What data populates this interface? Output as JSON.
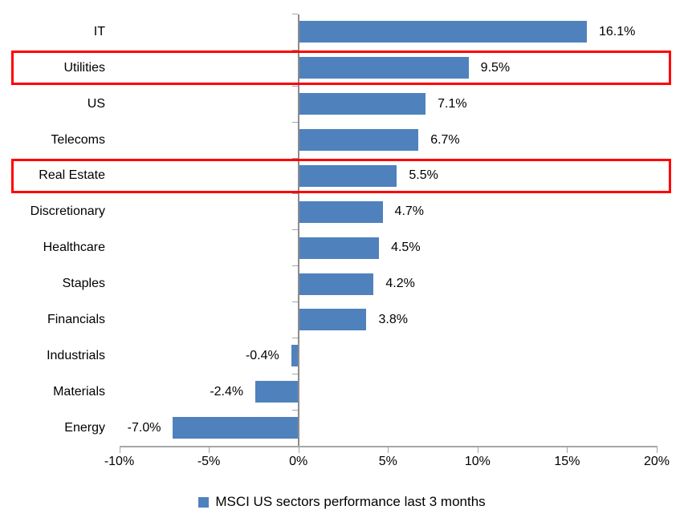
{
  "chart_data": {
    "type": "bar",
    "orientation": "horizontal",
    "categories": [
      "IT",
      "Utilities",
      "US",
      "Telecoms",
      "Real Estate",
      "Discretionary",
      "Healthcare",
      "Staples",
      "Financials",
      "Industrials",
      "Materials",
      "Energy"
    ],
    "values": [
      16.1,
      9.5,
      7.1,
      6.7,
      5.5,
      4.7,
      4.5,
      4.2,
      3.8,
      -0.4,
      -2.4,
      -7.0
    ],
    "value_labels": [
      "16.1%",
      "9.5%",
      "7.1%",
      "6.7%",
      "5.5%",
      "4.7%",
      "4.5%",
      "4.2%",
      "3.8%",
      "-0.4%",
      "-2.4%",
      "-7.0%"
    ],
    "highlighted": [
      "Utilities",
      "Real Estate"
    ],
    "x_axis": {
      "min": -10,
      "max": 20,
      "tick_step": 5,
      "tick_labels": [
        "-10%",
        "-5%",
        "0%",
        "5%",
        "10%",
        "15%",
        "20%"
      ]
    },
    "legend": {
      "label": "MSCI US sectors performance last 3 months",
      "position": "bottom"
    },
    "grid": false,
    "colors": {
      "bar": "#4f81bd",
      "highlight": "#ff0000",
      "axis": "#a6a6a6",
      "zero_line": "#8c8c8c",
      "text": "#000000"
    }
  }
}
